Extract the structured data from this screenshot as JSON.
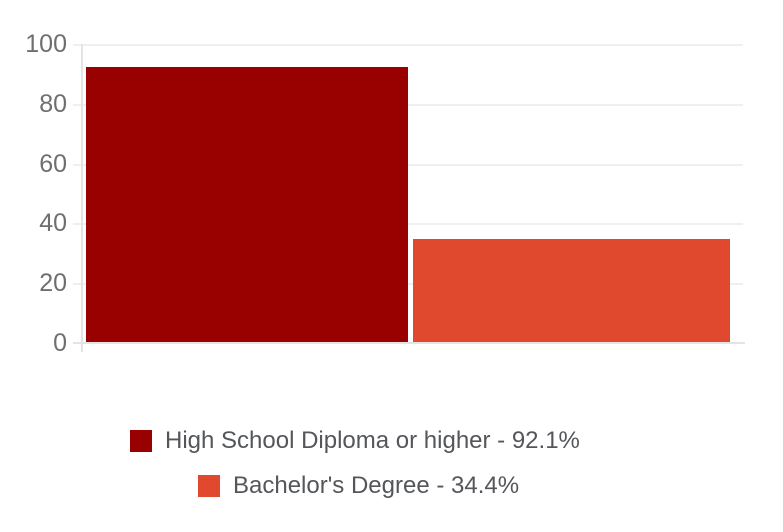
{
  "chart_data": {
    "type": "bar",
    "title": "",
    "xlabel": "",
    "ylabel": "",
    "categories": [
      "High School Diploma or higher",
      "Bachelor's Degree"
    ],
    "values": [
      92.1,
      34.4
    ],
    "colors": [
      "#990000",
      "#e0492d"
    ],
    "ylim": [
      0,
      100
    ],
    "yticks": [
      100,
      80,
      60,
      40,
      20,
      0
    ],
    "grid": true,
    "legend_position": "bottom"
  },
  "axis": {
    "tick_labels": [
      "100",
      "80",
      "60",
      "40",
      "20",
      "0"
    ]
  },
  "legend": {
    "items": [
      {
        "label": "High School Diploma or higher - 92.1%",
        "color": "#990000"
      },
      {
        "label": "Bachelor's Degree - 34.4%",
        "color": "#e0492d"
      }
    ]
  },
  "style_colors": {
    "gridline": "#efefef",
    "baseline": "#e4e4e4",
    "tick_label": "#6f6f6f",
    "legend_text": "#54565a"
  }
}
